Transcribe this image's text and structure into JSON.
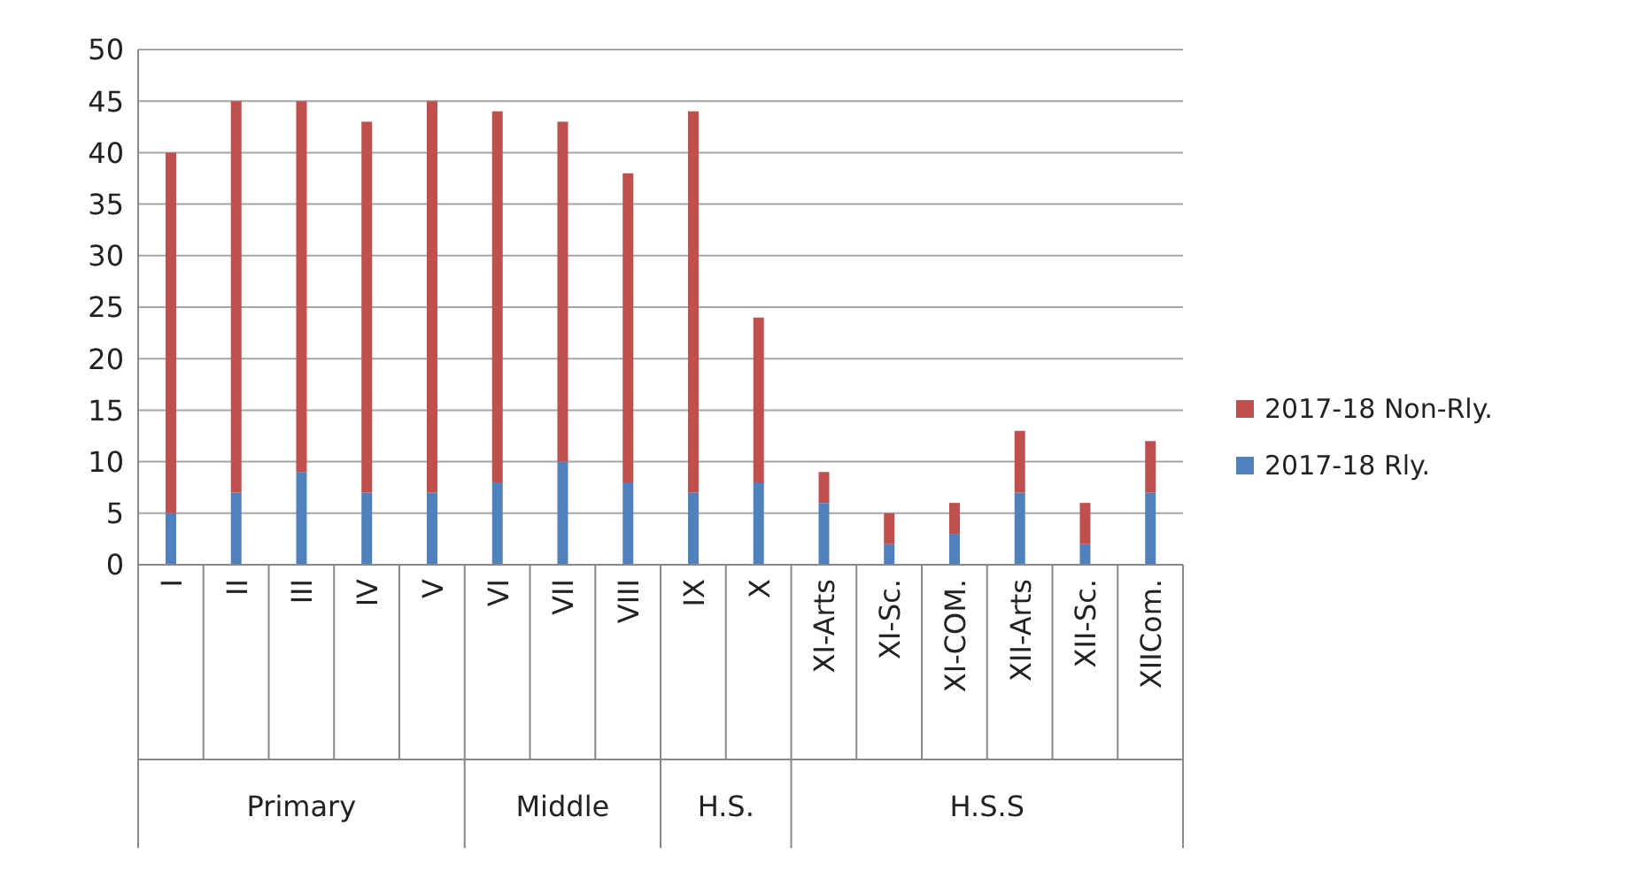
{
  "chart_data": {
    "type": "bar",
    "stacked": true,
    "categories": [
      "I",
      "II",
      "III",
      "IV",
      "V",
      "VI",
      "VII",
      "VIII",
      "IX",
      "X",
      "XI-Arts",
      "XI-Sc.",
      "XI-COM.",
      "XII-Arts",
      "XII-Sc.",
      "XIICom."
    ],
    "series": [
      {
        "name": "2017-18 Rly.",
        "color": "#4f81bd",
        "values": [
          5,
          7,
          9,
          7,
          7,
          8,
          10,
          8,
          7,
          8,
          6,
          2,
          3,
          7,
          2,
          7
        ]
      },
      {
        "name": "2017-18 Non-Rly.",
        "color": "#c0504d",
        "values": [
          35,
          38,
          36,
          36,
          38,
          36,
          33,
          30,
          37,
          16,
          3,
          3,
          3,
          6,
          4,
          5
        ]
      }
    ],
    "ylim": [
      0,
      50
    ],
    "yticks": [
      0,
      5,
      10,
      15,
      20,
      25,
      30,
      35,
      40,
      45,
      50
    ],
    "grid": "y",
    "legend": "right",
    "annotations": [
      "Primary",
      "Middle",
      "H.S.",
      "H.S.S"
    ]
  }
}
